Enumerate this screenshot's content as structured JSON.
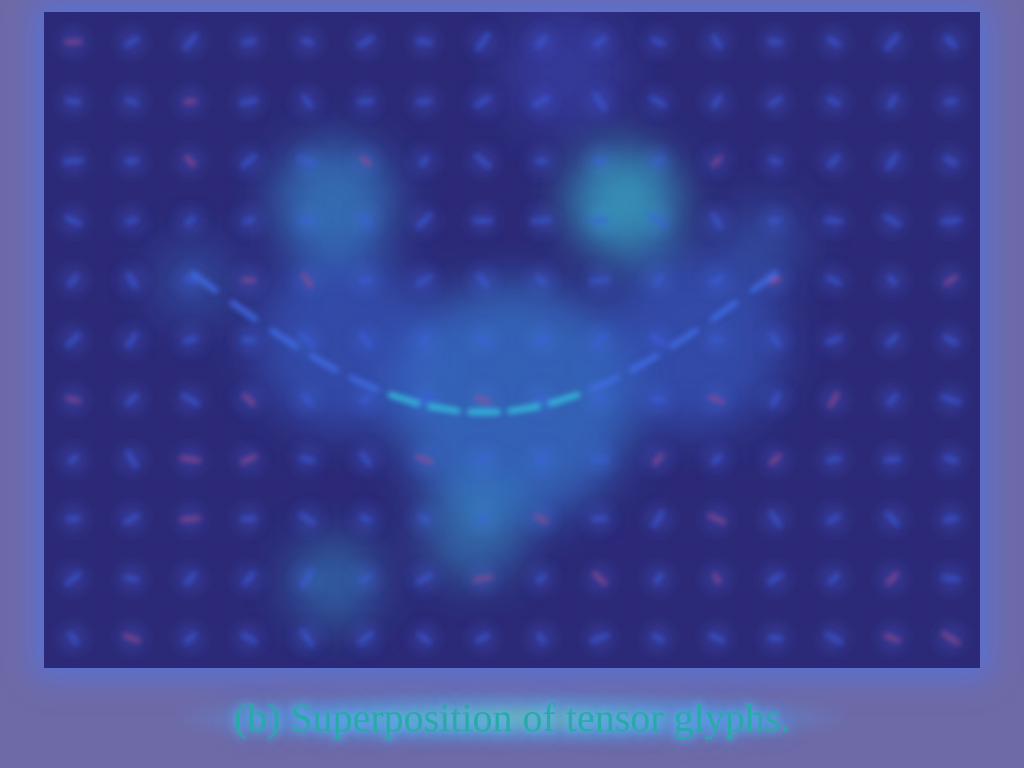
{
  "figure": {
    "caption": "(b) Superposition of tensor glyphs."
  },
  "colors": {
    "page_background": "#6e6aa8",
    "field_background": "#2c2a78",
    "glyph_blue": "#3b5ee0",
    "glyph_cyan": "#33c7e0",
    "glyph_red": "#a84a8a",
    "caption_text": "#2aa9a8"
  }
}
